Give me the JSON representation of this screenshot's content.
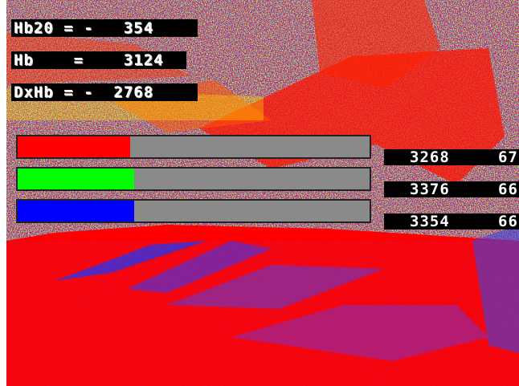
{
  "overlay": {
    "hb20": "Hb20 = -   354",
    "hb": "Hb    =    3124",
    "dxhb": "DxHb = -  2768"
  },
  "bars": [
    {
      "name": "red",
      "color": "#ff0000",
      "level": 0.32,
      "value": "3268",
      "extra": "67"
    },
    {
      "name": "green",
      "color": "#00ff00",
      "level": 0.33,
      "value": "3376",
      "extra": "66"
    },
    {
      "name": "blue",
      "color": "#0000ff",
      "level": 0.33,
      "value": "3354",
      "extra": "66"
    }
  ],
  "colors": {
    "background": "#ff0000",
    "track": "#8a8a8a",
    "label_bg": "#000000"
  }
}
